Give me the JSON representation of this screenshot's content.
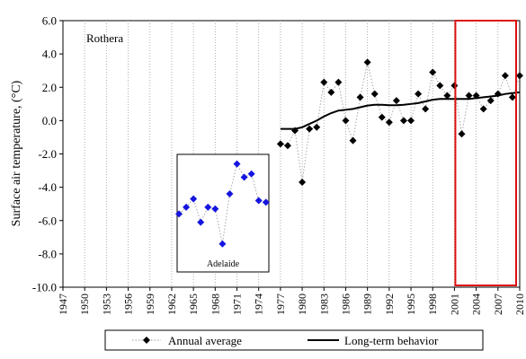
{
  "chart_data": {
    "type": "scatter",
    "title": "",
    "panel_label": "Rothera",
    "ylabel": "Surface air temperature, (°C)",
    "xlabel": "",
    "xlim": [
      1947,
      2010
    ],
    "ylim": [
      -10,
      6
    ],
    "x_ticks": [
      "1947",
      "1950",
      "1953",
      "1956",
      "1959",
      "1962",
      "1965",
      "1968",
      "1971",
      "1974",
      "1977",
      "1980",
      "1983",
      "1986",
      "1989",
      "1992",
      "1995",
      "1998",
      "2001",
      "2004",
      "2007",
      "2010"
    ],
    "y_ticks": [
      "6.0",
      "4.0",
      "2.0",
      "0.0",
      "-2.0",
      "-4.0",
      "-6.0",
      "-8.0",
      "-10.0"
    ],
    "grid": "vertical dotted at year ticks",
    "highlight_box_x_range": [
      2001,
      2010
    ],
    "highlight_color": "#dd1111",
    "inset_label": "Adelaide",
    "legend_position": "bottom",
    "series": [
      {
        "name": "Annual average",
        "marker": "diamond",
        "color": "#000000",
        "x": [
          1977,
          1978,
          1979,
          1980,
          1981,
          1982,
          1983,
          1984,
          1985,
          1986,
          1987,
          1988,
          1989,
          1990,
          1991,
          1992,
          1993,
          1994,
          1995,
          1996,
          1997,
          1998,
          1999,
          2000,
          2001,
          2002,
          2003,
          2004,
          2005,
          2006,
          2007,
          2008,
          2009,
          2010
        ],
        "values": [
          -1.4,
          -1.5,
          -0.6,
          -3.7,
          -0.5,
          -0.4,
          2.3,
          1.7,
          2.3,
          0.0,
          -1.2,
          1.4,
          3.5,
          1.6,
          0.2,
          -0.1,
          1.2,
          0.0,
          0.0,
          1.6,
          0.7,
          2.9,
          2.1,
          1.5,
          2.1,
          -0.8,
          1.5,
          1.5,
          0.7,
          1.2,
          1.6,
          2.7,
          1.4,
          2.7
        ]
      },
      {
        "name": "Long-term behavior",
        "line": "solid",
        "color": "#000000",
        "x": [
          1977,
          1978,
          1979,
          1980,
          1981,
          1982,
          1983,
          1984,
          1985,
          1986,
          1987,
          1988,
          1989,
          1990,
          1991,
          1992,
          1993,
          1994,
          1995,
          1996,
          1997,
          1998,
          1999,
          2000,
          2001,
          2002,
          2003,
          2004,
          2005,
          2006,
          2007,
          2008,
          2009,
          2010
        ],
        "values": [
          -0.5,
          -0.5,
          -0.5,
          -0.4,
          -0.2,
          0.0,
          0.25,
          0.45,
          0.6,
          0.65,
          0.7,
          0.8,
          0.9,
          0.95,
          0.95,
          0.92,
          0.92,
          0.95,
          1.0,
          1.05,
          1.15,
          1.25,
          1.3,
          1.3,
          1.3,
          1.3,
          1.3,
          1.35,
          1.4,
          1.45,
          1.5,
          1.6,
          1.65,
          1.7
        ]
      },
      {
        "name": "Adelaide",
        "marker": "diamond",
        "color": "#1515e0",
        "x": [
          1963,
          1964,
          1965,
          1966,
          1967,
          1968,
          1969,
          1970,
          1971,
          1972,
          1973,
          1974,
          1975
        ],
        "values": [
          -5.6,
          -5.2,
          -4.7,
          -6.1,
          -5.2,
          -5.3,
          -7.4,
          -4.4,
          -2.6,
          -3.4,
          -3.2,
          -4.8,
          -4.9
        ]
      }
    ]
  }
}
